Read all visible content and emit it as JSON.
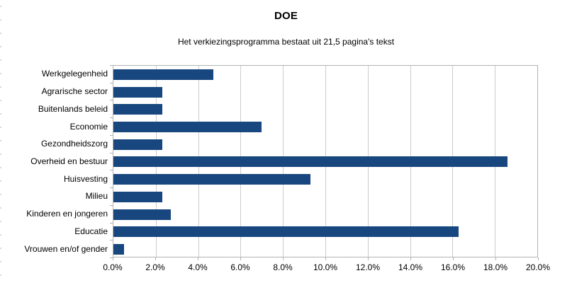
{
  "title": "DOE",
  "subtitle": "Het verkiezingsprogramma bestaat uit 21,5 pagina's tekst",
  "colors": {
    "bar": "#17477e",
    "grid": "#cccccc",
    "plot_border": "#b3b3b3",
    "text": "#000000",
    "background": "#ffffff"
  },
  "chart_data": {
    "type": "bar",
    "orientation": "horizontal",
    "title": "DOE",
    "subtitle": "Het verkiezingsprogramma bestaat uit 21,5 pagina's tekst",
    "xlabel": "",
    "ylabel": "",
    "categories": [
      "Werkgelegenheid",
      "Agrarische sector",
      "Buitenlands beleid",
      "Economie",
      "Gezondheidszorg",
      "Overheid en bestuur",
      "Huisvesting",
      "Milieu",
      "Kinderen en jongeren",
      "Educatie",
      "Vrouwen en/of gender"
    ],
    "values": [
      4.7,
      2.3,
      2.3,
      7.0,
      2.3,
      18.6,
      9.3,
      2.3,
      2.7,
      16.3,
      0.5
    ],
    "value_unit": "%",
    "xlim": [
      0,
      20
    ],
    "x_tick_step": 2,
    "x_tick_labels": [
      "0.0%",
      "2.0%",
      "4.0%",
      "6.0%",
      "8.0%",
      "10.0%",
      "12.0%",
      "14.0%",
      "16.0%",
      "18.0%",
      "20.0%"
    ],
    "grid": true,
    "legend": false
  }
}
